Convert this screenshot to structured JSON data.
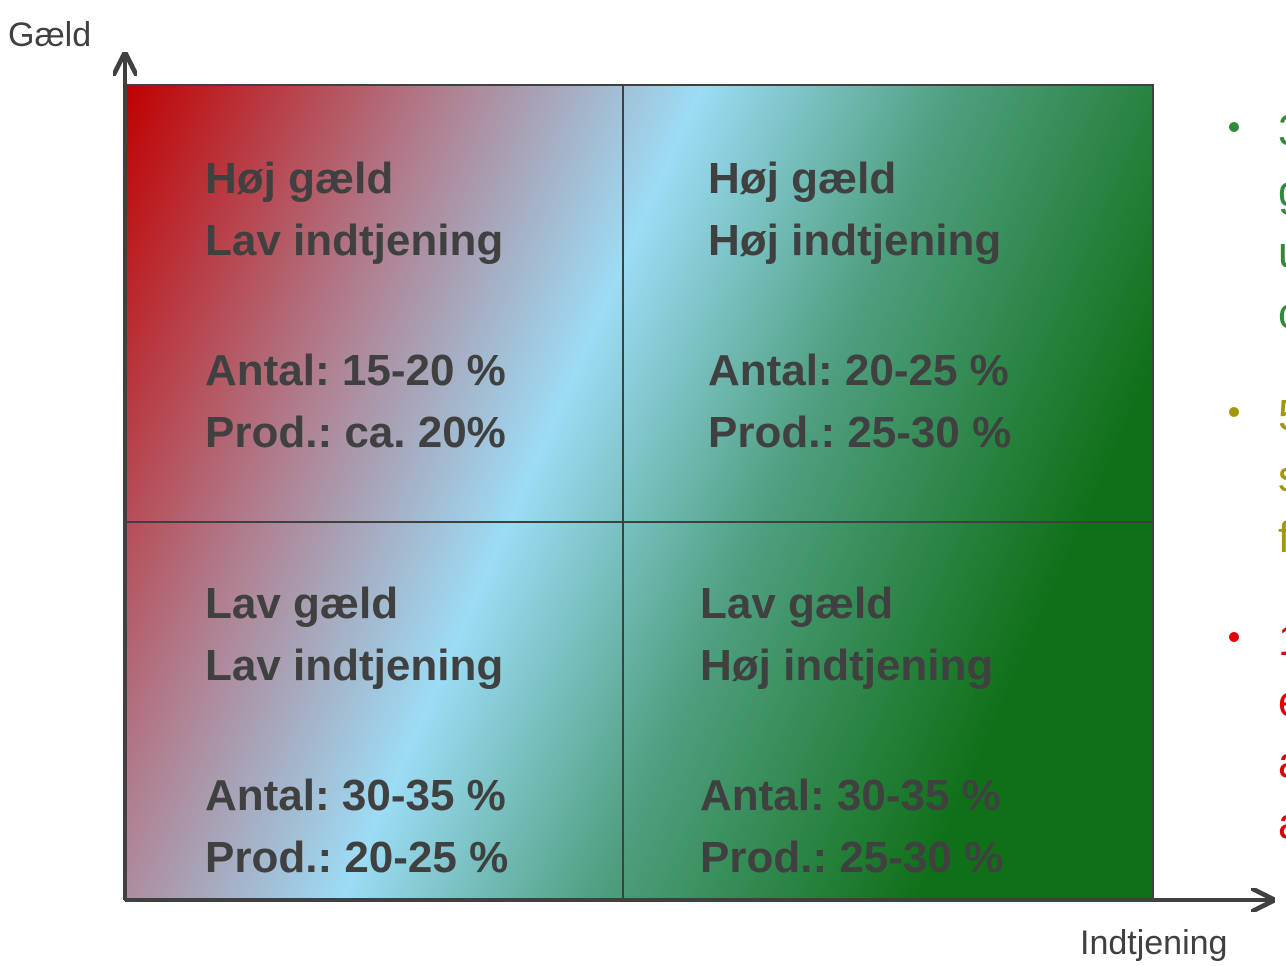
{
  "axes": {
    "y_label": "Gæld",
    "x_label": "Indtjening"
  },
  "quadrants": [
    {
      "lines": [
        "Høj gæld",
        "Lav indtjening",
        "Antal: 15-20 %",
        "Prod.: ca. 20%"
      ]
    },
    {
      "lines": [
        "Høj gæld",
        "Høj indtjening",
        "Antal: 20-25 %",
        "Prod.: 25-30 %"
      ]
    },
    {
      "lines": [
        "Lav gæld",
        "Lav indtjening",
        "Antal: 30-35 %",
        "Prod.: 20-25 %"
      ]
    },
    {
      "lines": [
        "Lav gæld",
        "Høj indtjening",
        "Antal: 30-35 %",
        "Prod.: 25-30 %"
      ]
    }
  ],
  "bullets": [
    {
      "lines": [
        "3",
        "g",
        "u",
        "c"
      ]
    },
    {
      "lines": [
        "5",
        "s",
        "f"
      ]
    },
    {
      "lines": [
        "1",
        "e",
        "a",
        "a"
      ]
    }
  ]
}
